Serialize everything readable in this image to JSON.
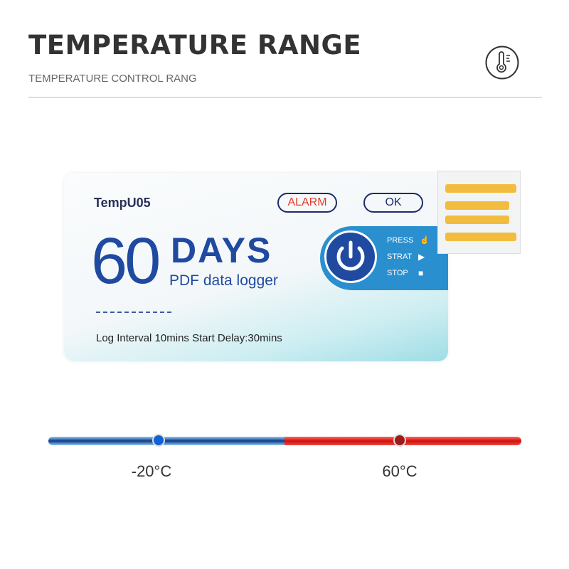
{
  "header": {
    "title": "TEMPERATURE RANGE",
    "subtitle": "TEMPERATURE CONTROL RANG",
    "icon": "thermometer-icon"
  },
  "device": {
    "model": "TempU05",
    "alarm_label": "ALARM",
    "ok_label": "OK",
    "days_number": "60",
    "days_word": "DAYS",
    "product_type": "PDF data logger",
    "specs": "Log Interval 10mins Start Delay:30mins",
    "panel": {
      "press": "PRESS",
      "start": "STRAT",
      "stop": "STOP"
    }
  },
  "range": {
    "min_label": "-20°C",
    "max_label": "60°C",
    "min": -20,
    "max": 60,
    "colors": {
      "cold": "#103a8a",
      "hot": "#d01010"
    }
  }
}
